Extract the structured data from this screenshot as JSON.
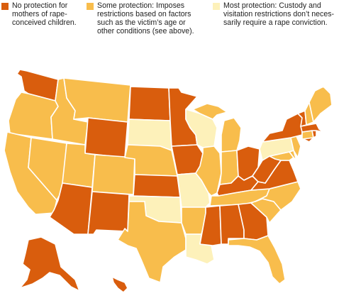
{
  "colors": {
    "none": "#d95d0d",
    "some": "#f8bd4c",
    "most": "#fdf1ba"
  },
  "legend": [
    {
      "level": "none",
      "lines": [
        "No protection for",
        "mothers of rape-",
        "conceived children."
      ]
    },
    {
      "level": "some",
      "lines": [
        "Some protection: Imposes",
        "restrictions based on factors",
        "such as the victim’s age or",
        "other conditions (see above)."
      ]
    },
    {
      "level": "most",
      "lines": [
        "Most protection: Custody and",
        "visitation restrictions don’t neces-",
        "sarily require a rape conviction."
      ]
    }
  ],
  "states": {
    "WA": "none",
    "OR": "some",
    "CA": "some",
    "NV": "some",
    "ID": "some",
    "MT": "some",
    "WY": "none",
    "UT": "some",
    "AZ": "none",
    "CO": "some",
    "NM": "none",
    "ND": "none",
    "SD": "most",
    "NE": "some",
    "KS": "none",
    "OK": "most",
    "TX": "some",
    "MN": "none",
    "IA": "none",
    "MO": "most",
    "AR": "some",
    "LA": "most",
    "WI": "most",
    "IL": "some",
    "MI": "some",
    "IN": "some",
    "OH": "none",
    "KY": "none",
    "TN": "some",
    "MS": "none",
    "AL": "none",
    "GA": "none",
    "FL": "some",
    "SC": "some",
    "NC": "some",
    "VA": "none",
    "WV": "none",
    "MD": "some",
    "DE": "some",
    "PA": "most",
    "NY": "none",
    "NJ": "some",
    "CT": "some",
    "RI": "none",
    "MA": "none",
    "VT": "none",
    "NH": "some",
    "ME": "some",
    "AK": "none",
    "HI": "none"
  }
}
